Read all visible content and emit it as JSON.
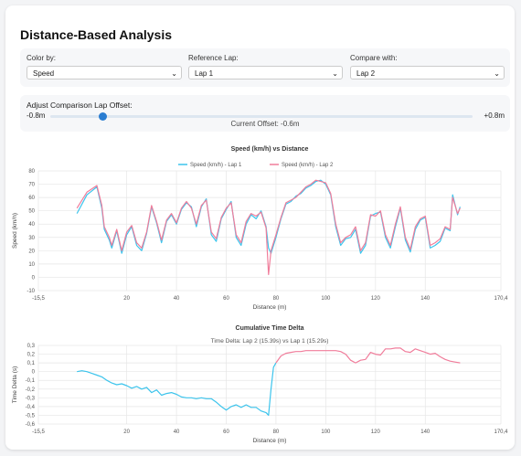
{
  "page": {
    "title": "Distance-Based Analysis"
  },
  "controls": {
    "color_by": {
      "label": "Color by:",
      "value": "Speed"
    },
    "reference_lap": {
      "label": "Reference Lap:",
      "value": "Lap 1"
    },
    "compare_with": {
      "label": "Compare with:",
      "value": "Lap 2"
    }
  },
  "offset": {
    "label": "Adjust Comparison Lap Offset:",
    "min_label": "-0.8m",
    "max_label": "+0.8m",
    "current_text": "Current Offset: -0.6m",
    "min": -0.8,
    "max": 0.8,
    "value": -0.6
  },
  "colors": {
    "lap1": "#3cc4ec",
    "lap2": "#f07d9b",
    "grid": "#e6e6e6",
    "thumb": "#2a7dd1"
  },
  "chart_data": [
    {
      "type": "line",
      "title": "Speed (km/h) vs Distance",
      "xlabel": "Distance (m)",
      "ylabel": "Speed (km/h)",
      "xlim": [
        -15.5,
        170.4
      ],
      "ylim": [
        -10,
        80
      ],
      "xticks": [
        -15.5,
        20,
        40,
        60,
        80,
        100,
        120,
        140,
        170.4
      ],
      "yticks": [
        -10,
        0,
        10,
        20,
        30,
        40,
        50,
        60,
        70,
        80
      ],
      "legend": "top-center",
      "grid": true,
      "series": [
        {
          "name": "Speed (km/h) - Lap 1",
          "color": "#3cc4ec",
          "x": [
            0,
            4,
            8,
            10,
            11,
            13,
            14,
            16,
            18,
            20,
            22,
            24,
            26,
            28,
            30,
            32,
            34,
            36,
            38,
            40,
            42,
            44,
            46,
            48,
            50,
            52,
            54,
            56,
            58,
            60,
            62,
            64,
            66,
            68,
            70,
            72,
            74,
            76,
            77,
            78,
            80,
            82,
            84,
            86,
            88,
            90,
            92,
            94,
            96,
            98,
            100,
            102,
            104,
            106,
            108,
            110,
            112,
            114,
            116,
            118,
            120,
            122,
            124,
            126,
            128,
            130,
            132,
            134,
            136,
            138,
            140,
            142,
            144,
            146,
            148,
            150,
            151,
            153,
            154
          ],
          "y": [
            48,
            62,
            68,
            52,
            36,
            28,
            22,
            35,
            18,
            32,
            38,
            24,
            20,
            33,
            53,
            41,
            26,
            42,
            47,
            40,
            51,
            56,
            53,
            38,
            53,
            59,
            32,
            27,
            44,
            51,
            57,
            30,
            24,
            40,
            47,
            44,
            50,
            38,
            22,
            18,
            30,
            44,
            55,
            57,
            61,
            63,
            67,
            69,
            72,
            73,
            70,
            62,
            38,
            24,
            29,
            30,
            36,
            18,
            24,
            46,
            48,
            49,
            30,
            22,
            38,
            52,
            28,
            19,
            36,
            43,
            45,
            22,
            24,
            27,
            37,
            35,
            62,
            47,
            53
          ]
        },
        {
          "name": "Speed (km/h) - Lap 2",
          "color": "#f07d9b",
          "x": [
            0,
            4,
            8,
            10,
            11,
            13,
            14,
            16,
            18,
            20,
            22,
            24,
            26,
            28,
            30,
            32,
            34,
            36,
            38,
            40,
            42,
            44,
            46,
            48,
            50,
            52,
            54,
            56,
            58,
            60,
            62,
            64,
            66,
            68,
            70,
            72,
            74,
            76,
            77,
            78,
            80,
            82,
            84,
            86,
            88,
            90,
            92,
            94,
            96,
            98,
            100,
            102,
            104,
            106,
            108,
            110,
            112,
            114,
            116,
            118,
            120,
            122,
            124,
            126,
            128,
            130,
            132,
            134,
            136,
            138,
            140,
            142,
            144,
            146,
            148,
            150,
            151,
            153,
            154
          ],
          "y": [
            52,
            64,
            69,
            54,
            38,
            30,
            24,
            36,
            20,
            34,
            39,
            26,
            22,
            34,
            54,
            42,
            28,
            43,
            48,
            41,
            52,
            57,
            52,
            40,
            54,
            58,
            34,
            29,
            45,
            52,
            56,
            32,
            26,
            42,
            48,
            46,
            49,
            37,
            2,
            20,
            32,
            45,
            56,
            58,
            60,
            64,
            68,
            70,
            73,
            72,
            71,
            63,
            40,
            26,
            30,
            32,
            38,
            20,
            26,
            47,
            46,
            50,
            32,
            24,
            40,
            53,
            30,
            21,
            38,
            44,
            46,
            24,
            26,
            29,
            38,
            36,
            60,
            48,
            52
          ]
        }
      ]
    },
    {
      "type": "line",
      "title": "Cumulative Time Delta",
      "subtitle": "Time Delta: Lap 2 (15.39s) vs Lap 1 (15.29s)",
      "xlabel": "Distance (m)",
      "ylabel": "Time Delta (s)",
      "xlim": [
        -15.5,
        170.4
      ],
      "ylim": [
        -0.6,
        0.3
      ],
      "xticks": [
        -15.5,
        20,
        40,
        60,
        80,
        100,
        120,
        140,
        170.4
      ],
      "yticks": [
        -0.6,
        -0.5,
        -0.4,
        -0.3,
        -0.2,
        -0.1,
        0,
        0.1,
        0.2,
        0.3
      ],
      "grid": true,
      "series": [
        {
          "name": "",
          "color": "#3cc4ec",
          "x": [
            0,
            2,
            4,
            6,
            8,
            10,
            12,
            14,
            16,
            18,
            20,
            22,
            24,
            26,
            28,
            30,
            32,
            34,
            36,
            38,
            40,
            42,
            44,
            46,
            48,
            50,
            52,
            54,
            56,
            58,
            60,
            62,
            64,
            66,
            68,
            70,
            72,
            74,
            76,
            77,
            78,
            79,
            80
          ],
          "y": [
            0,
            0.01,
            0,
            -0.02,
            -0.04,
            -0.06,
            -0.1,
            -0.13,
            -0.15,
            -0.14,
            -0.16,
            -0.19,
            -0.17,
            -0.2,
            -0.18,
            -0.24,
            -0.21,
            -0.27,
            -0.25,
            -0.24,
            -0.26,
            -0.29,
            -0.3,
            -0.3,
            -0.31,
            -0.3,
            -0.31,
            -0.31,
            -0.35,
            -0.4,
            -0.44,
            -0.4,
            -0.38,
            -0.41,
            -0.38,
            -0.41,
            -0.41,
            -0.45,
            -0.47,
            -0.5,
            -0.2,
            0.05,
            0.1
          ]
        },
        {
          "name": "",
          "color": "#f07d9b",
          "x": [
            80,
            82,
            84,
            86,
            88,
            90,
            92,
            94,
            96,
            98,
            100,
            102,
            104,
            106,
            108,
            110,
            112,
            114,
            116,
            118,
            120,
            122,
            124,
            126,
            128,
            130,
            132,
            134,
            136,
            138,
            140,
            142,
            144,
            146,
            148,
            150,
            152,
            154
          ],
          "y": [
            0.1,
            0.18,
            0.21,
            0.22,
            0.23,
            0.23,
            0.24,
            0.24,
            0.24,
            0.24,
            0.24,
            0.24,
            0.24,
            0.23,
            0.2,
            0.13,
            0.1,
            0.13,
            0.14,
            0.22,
            0.2,
            0.19,
            0.26,
            0.26,
            0.27,
            0.27,
            0.23,
            0.22,
            0.26,
            0.24,
            0.22,
            0.2,
            0.21,
            0.17,
            0.14,
            0.12,
            0.11,
            0.1
          ]
        }
      ]
    }
  ]
}
